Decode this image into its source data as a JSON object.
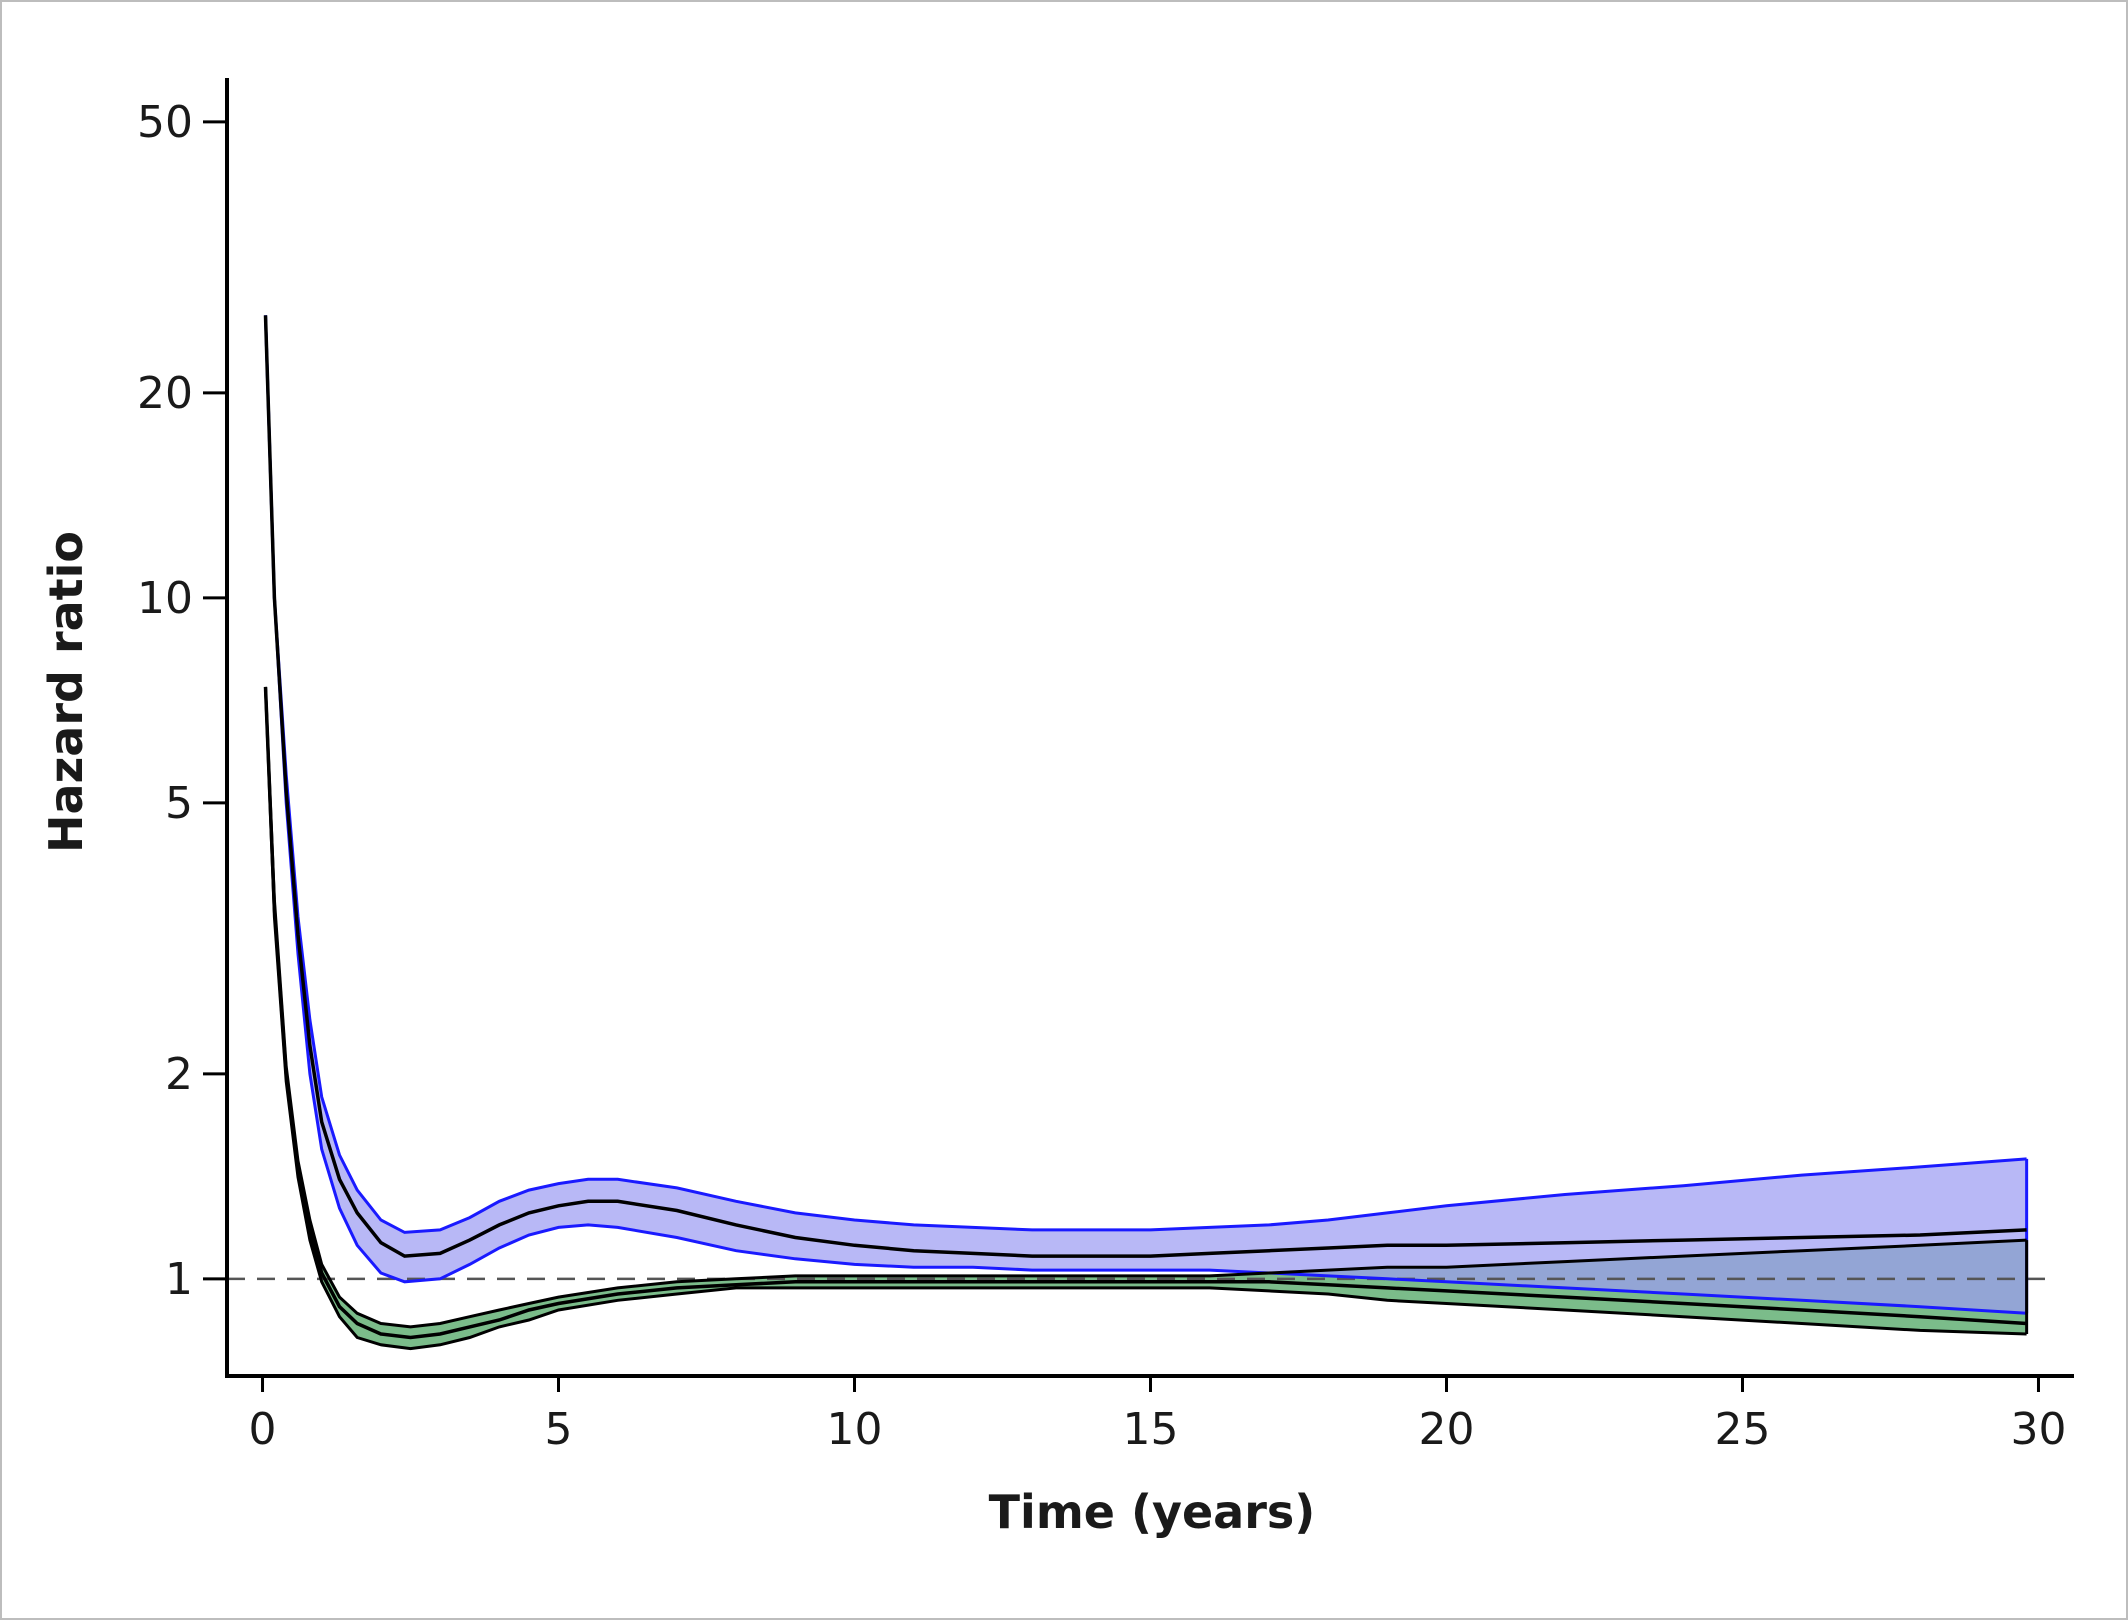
{
  "chart_data": {
    "type": "line",
    "xlabel": "Time (years)",
    "ylabel": "Hazard ratio",
    "xlim": [
      -0.6,
      30.6
    ],
    "ylim": [
      0.72,
      58
    ],
    "y_scale": "log",
    "x_ticks": [
      0,
      5,
      10,
      15,
      20,
      25,
      30
    ],
    "y_ticks": [
      1,
      2,
      5,
      10,
      20,
      50
    ],
    "reference_line": {
      "y": 1,
      "style": "dashed",
      "color": "#555555"
    },
    "grid": false,
    "legend": "none",
    "series": [
      {
        "color": "#1a1aff",
        "fill": "#9d9df2",
        "x": [
          0.05,
          0.2,
          0.4,
          0.6,
          0.8,
          1.0,
          1.3,
          1.6,
          2.0,
          2.4,
          3.0,
          3.5,
          4.0,
          4.5,
          5.0,
          5.5,
          6.0,
          7.0,
          8.0,
          9.0,
          10.0,
          11.0,
          12.0,
          13.0,
          14.0,
          15.0,
          16.0,
          17.0,
          18.0,
          19.0,
          20.0,
          22.0,
          24.0,
          26.0,
          28.0,
          29.8
        ],
        "estimate": [
          26,
          10,
          5.2,
          3.2,
          2.2,
          1.7,
          1.4,
          1.25,
          1.13,
          1.08,
          1.09,
          1.14,
          1.2,
          1.25,
          1.28,
          1.3,
          1.3,
          1.26,
          1.2,
          1.15,
          1.12,
          1.1,
          1.09,
          1.08,
          1.08,
          1.08,
          1.09,
          1.1,
          1.11,
          1.12,
          1.12,
          1.13,
          1.14,
          1.15,
          1.16,
          1.18
        ],
        "lower": [
          26,
          10,
          5.0,
          3.0,
          2.0,
          1.55,
          1.27,
          1.12,
          1.02,
          0.99,
          1.0,
          1.05,
          1.11,
          1.16,
          1.19,
          1.2,
          1.19,
          1.15,
          1.1,
          1.07,
          1.05,
          1.04,
          1.04,
          1.03,
          1.03,
          1.03,
          1.03,
          1.02,
          1.01,
          1.0,
          0.99,
          0.97,
          0.95,
          0.93,
          0.91,
          0.89
        ],
        "upper": [
          26,
          10,
          5.5,
          3.4,
          2.4,
          1.85,
          1.52,
          1.35,
          1.22,
          1.17,
          1.18,
          1.23,
          1.3,
          1.35,
          1.38,
          1.4,
          1.4,
          1.36,
          1.3,
          1.25,
          1.22,
          1.2,
          1.19,
          1.18,
          1.18,
          1.18,
          1.19,
          1.2,
          1.22,
          1.25,
          1.28,
          1.33,
          1.37,
          1.42,
          1.46,
          1.5
        ]
      },
      {
        "color": "#000000",
        "fill": "#74b884",
        "x": [
          0.05,
          0.2,
          0.4,
          0.6,
          0.8,
          1.0,
          1.3,
          1.6,
          2.0,
          2.5,
          3.0,
          3.5,
          4.0,
          4.5,
          5.0,
          6.0,
          7.0,
          8.0,
          9.0,
          10.0,
          11.0,
          12.0,
          13.0,
          14.0,
          15.0,
          16.0,
          17.0,
          18.0,
          19.0,
          20.0,
          22.0,
          24.0,
          26.0,
          28.0,
          29.8
        ],
        "estimate": [
          7.4,
          3.5,
          2.0,
          1.45,
          1.18,
          1.02,
          0.91,
          0.86,
          0.83,
          0.82,
          0.83,
          0.85,
          0.87,
          0.9,
          0.92,
          0.95,
          0.97,
          0.98,
          0.99,
          0.99,
          0.99,
          0.99,
          0.99,
          0.99,
          0.99,
          0.99,
          0.99,
          0.98,
          0.97,
          0.96,
          0.94,
          0.92,
          0.9,
          0.88,
          0.86
        ],
        "lower": [
          7.4,
          3.4,
          1.95,
          1.41,
          1.14,
          0.99,
          0.88,
          0.82,
          0.8,
          0.79,
          0.8,
          0.82,
          0.85,
          0.87,
          0.9,
          0.93,
          0.95,
          0.97,
          0.97,
          0.97,
          0.97,
          0.97,
          0.97,
          0.97,
          0.97,
          0.97,
          0.96,
          0.95,
          0.93,
          0.92,
          0.9,
          0.88,
          0.86,
          0.84,
          0.83
        ],
        "upper": [
          7.4,
          3.6,
          2.05,
          1.49,
          1.22,
          1.05,
          0.94,
          0.89,
          0.86,
          0.85,
          0.86,
          0.88,
          0.9,
          0.92,
          0.94,
          0.97,
          0.99,
          1.0,
          1.01,
          1.01,
          1.01,
          1.01,
          1.01,
          1.01,
          1.01,
          1.01,
          1.02,
          1.03,
          1.04,
          1.04,
          1.06,
          1.08,
          1.1,
          1.12,
          1.14
        ]
      }
    ]
  }
}
